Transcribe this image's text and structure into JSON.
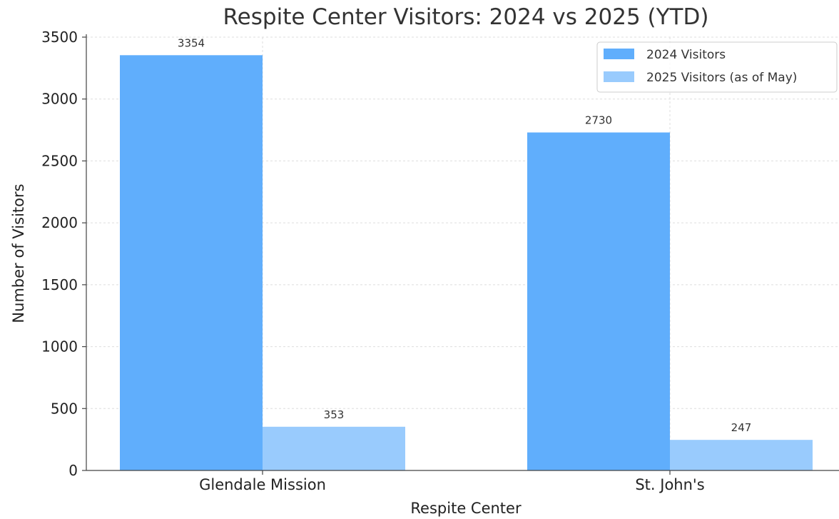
{
  "chart_data": {
    "type": "bar",
    "title": "Respite Center Visitors: 2024 vs 2025 (YTD)",
    "xlabel": "Respite Center",
    "ylabel": "Number of Visitors",
    "categories": [
      "Glendale Mission",
      "St. John's"
    ],
    "series": [
      {
        "name": "2024 Visitors",
        "values": [
          3354,
          2730
        ],
        "color": "#60aefc"
      },
      {
        "name": "2025 Visitors (as of May)",
        "values": [
          353,
          247
        ],
        "color": "#99cbfd"
      }
    ],
    "ylim": [
      0,
      3500
    ],
    "yticks": [
      0,
      500,
      1000,
      1500,
      2000,
      2500,
      3000,
      3500
    ],
    "grid": true,
    "legend_position": "top-right"
  }
}
